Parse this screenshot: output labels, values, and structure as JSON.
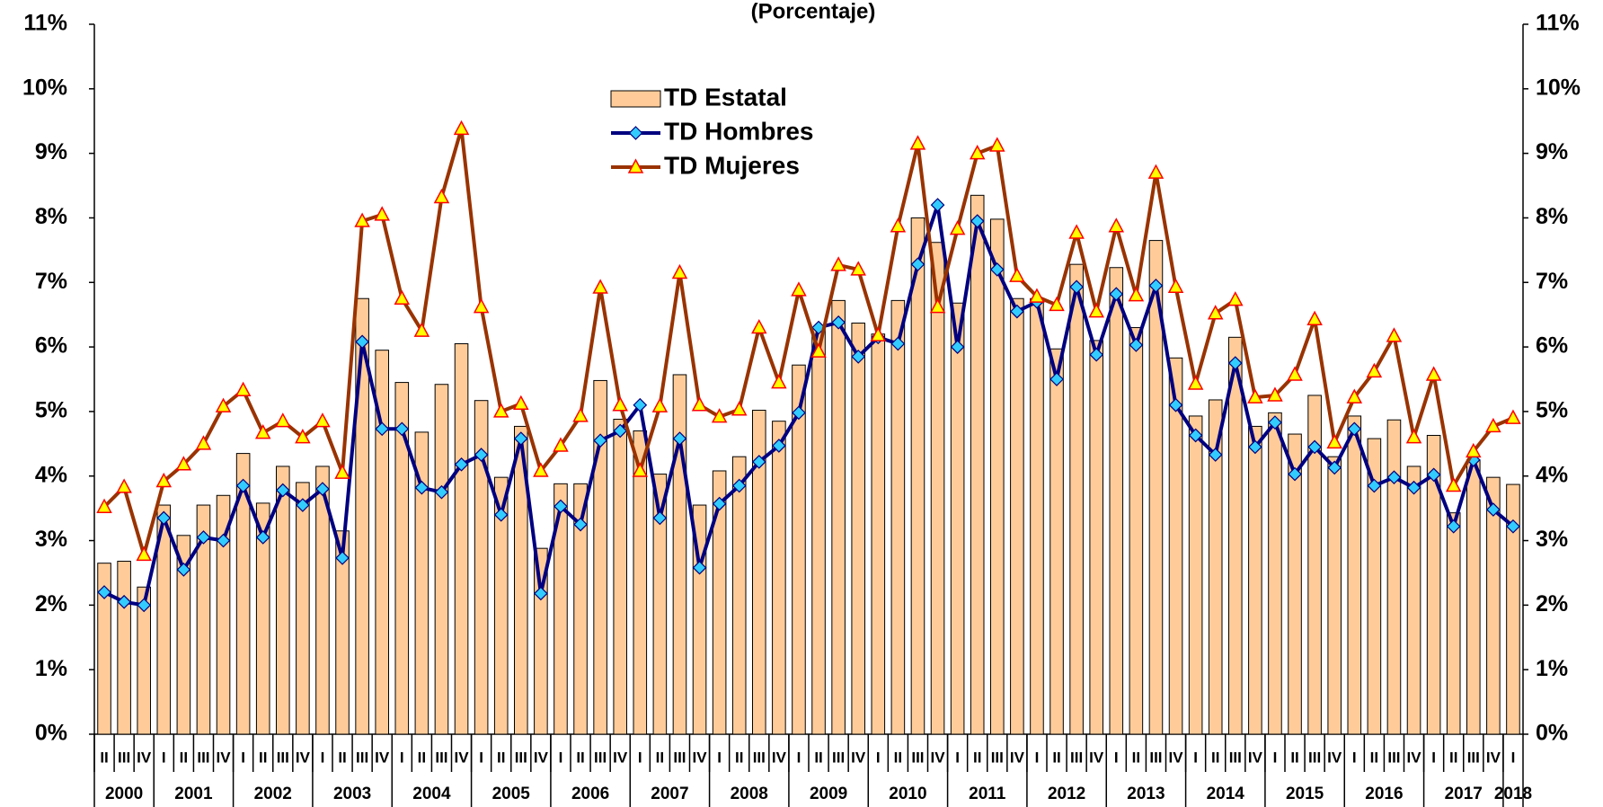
{
  "chart_data": {
    "type": "bar-line",
    "title": "(Porcentaje)",
    "categories": [
      "II",
      "III",
      "IV",
      "I",
      "II",
      "III",
      "IV",
      "I",
      "II",
      "III",
      "IV",
      "I",
      "II",
      "III",
      "IV",
      "I",
      "II",
      "III",
      "IV",
      "I",
      "II",
      "III",
      "IV",
      "I",
      "II",
      "III",
      "IV",
      "I",
      "II",
      "III",
      "IV",
      "I",
      "II",
      "III",
      "IV",
      "I",
      "II",
      "III",
      "IV",
      "I",
      "II",
      "III",
      "IV",
      "I",
      "II",
      "III",
      "IV",
      "I",
      "II",
      "III",
      "IV",
      "I",
      "II",
      "III",
      "IV",
      "I",
      "II",
      "III",
      "IV",
      "I",
      "II",
      "III",
      "IV",
      "I",
      "II",
      "III",
      "IV",
      "I",
      "II",
      "III",
      "IV",
      "I"
    ],
    "years": [
      "2000",
      "2001",
      "2002",
      "2003",
      "2004",
      "2005",
      "2006",
      "2007",
      "2008",
      "2009",
      "2010",
      "2011",
      "2012",
      "2013",
      "2014",
      "2015",
      "2016",
      "2017",
      "2018"
    ],
    "series": [
      {
        "name": "TD Estatal",
        "kind": "bar",
        "color": "#FFCC99",
        "values": [
          2.65,
          2.68,
          2.28,
          3.55,
          3.08,
          3.55,
          3.7,
          4.35,
          3.58,
          4.15,
          3.9,
          4.15,
          3.15,
          6.75,
          5.95,
          5.45,
          4.68,
          5.42,
          6.05,
          5.17,
          3.98,
          4.77,
          2.88,
          3.88,
          3.88,
          5.48,
          4.88,
          4.7,
          4.03,
          5.57,
          3.55,
          4.08,
          4.3,
          5.02,
          4.85,
          5.72,
          6.3,
          6.72,
          6.37,
          6.2,
          6.72,
          8.0,
          7.62,
          6.68,
          8.35,
          7.98,
          6.75,
          6.75,
          5.97,
          7.28,
          6.1,
          7.23,
          6.3,
          7.65,
          5.83,
          4.93,
          5.18,
          6.15,
          4.77,
          4.98,
          4.65,
          5.25,
          4.3,
          4.93,
          4.58,
          4.87,
          4.15,
          4.63,
          3.43,
          4.25,
          3.98,
          3.87
        ]
      },
      {
        "name": "TD Hombres",
        "kind": "line",
        "color": "#000080",
        "marker": "diamond",
        "marker_color": "#33CCFF",
        "values": [
          2.2,
          2.05,
          2.0,
          3.35,
          2.55,
          3.05,
          3.0,
          3.85,
          3.05,
          3.78,
          3.55,
          3.8,
          2.73,
          6.08,
          4.73,
          4.73,
          3.82,
          3.75,
          4.18,
          4.33,
          3.4,
          4.58,
          2.18,
          3.53,
          3.25,
          4.55,
          4.7,
          5.1,
          3.35,
          4.58,
          2.58,
          3.57,
          3.85,
          4.22,
          4.47,
          4.98,
          6.3,
          6.38,
          5.85,
          6.15,
          6.05,
          7.28,
          8.2,
          6.0,
          7.95,
          7.2,
          6.55,
          6.7,
          5.5,
          6.93,
          5.88,
          6.82,
          6.03,
          6.95,
          5.1,
          4.63,
          4.33,
          5.75,
          4.45,
          4.83,
          4.03,
          4.45,
          4.13,
          4.73,
          3.85,
          3.98,
          3.82,
          4.02,
          3.22,
          4.25,
          3.48,
          3.22
        ]
      },
      {
        "name": "TD Mujeres",
        "kind": "line",
        "color": "#993300",
        "marker": "triangle",
        "marker_color": "#FFFF00",
        "values": [
          3.52,
          3.83,
          2.78,
          3.92,
          4.18,
          4.5,
          5.08,
          5.33,
          4.67,
          4.85,
          4.6,
          4.85,
          4.05,
          7.95,
          8.05,
          6.75,
          6.25,
          8.32,
          9.38,
          6.62,
          5.0,
          5.12,
          4.08,
          4.47,
          4.93,
          6.92,
          5.1,
          4.08,
          5.08,
          7.15,
          5.1,
          4.92,
          5.03,
          6.3,
          5.45,
          6.88,
          5.93,
          7.27,
          7.2,
          6.18,
          7.87,
          9.15,
          6.62,
          7.83,
          9.0,
          9.12,
          7.1,
          6.78,
          6.65,
          7.77,
          6.55,
          7.87,
          6.8,
          8.7,
          6.93,
          5.43,
          6.52,
          6.73,
          5.22,
          5.25,
          5.57,
          6.43,
          4.52,
          5.22,
          5.62,
          6.17,
          4.6,
          5.57,
          3.85,
          4.38,
          4.77,
          4.9
        ]
      }
    ],
    "ylim": [
      0,
      11
    ],
    "yticks": [
      {
        "value": 0,
        "label": "0%"
      },
      {
        "value": 1,
        "label": "1%"
      },
      {
        "value": 2,
        "label": "2%"
      },
      {
        "value": 3,
        "label": "3%"
      },
      {
        "value": 4,
        "label": "4%"
      },
      {
        "value": 5,
        "label": "5%"
      },
      {
        "value": 6,
        "label": "6%"
      },
      {
        "value": 7,
        "label": "7%"
      },
      {
        "value": 8,
        "label": "8%"
      },
      {
        "value": 9,
        "label": "9%"
      },
      {
        "value": 10,
        "label": "10%"
      },
      {
        "value": 11,
        "label": "11%"
      }
    ],
    "y2lim": [
      0,
      11
    ],
    "y2ticks": [
      {
        "value": 0,
        "label": "0%"
      },
      {
        "value": 1,
        "label": "1%"
      },
      {
        "value": 2,
        "label": "2%"
      },
      {
        "value": 3,
        "label": "3%"
      },
      {
        "value": 4,
        "label": "4%"
      },
      {
        "value": 5,
        "label": "5%"
      },
      {
        "value": 6,
        "label": "6%"
      },
      {
        "value": 7,
        "label": "7%"
      },
      {
        "value": 8,
        "label": "8%"
      },
      {
        "value": 9,
        "label": "9%"
      },
      {
        "value": 10,
        "label": "10%"
      },
      {
        "value": 11,
        "label": "11%"
      }
    ],
    "grid": false,
    "legend": "upper-center"
  }
}
